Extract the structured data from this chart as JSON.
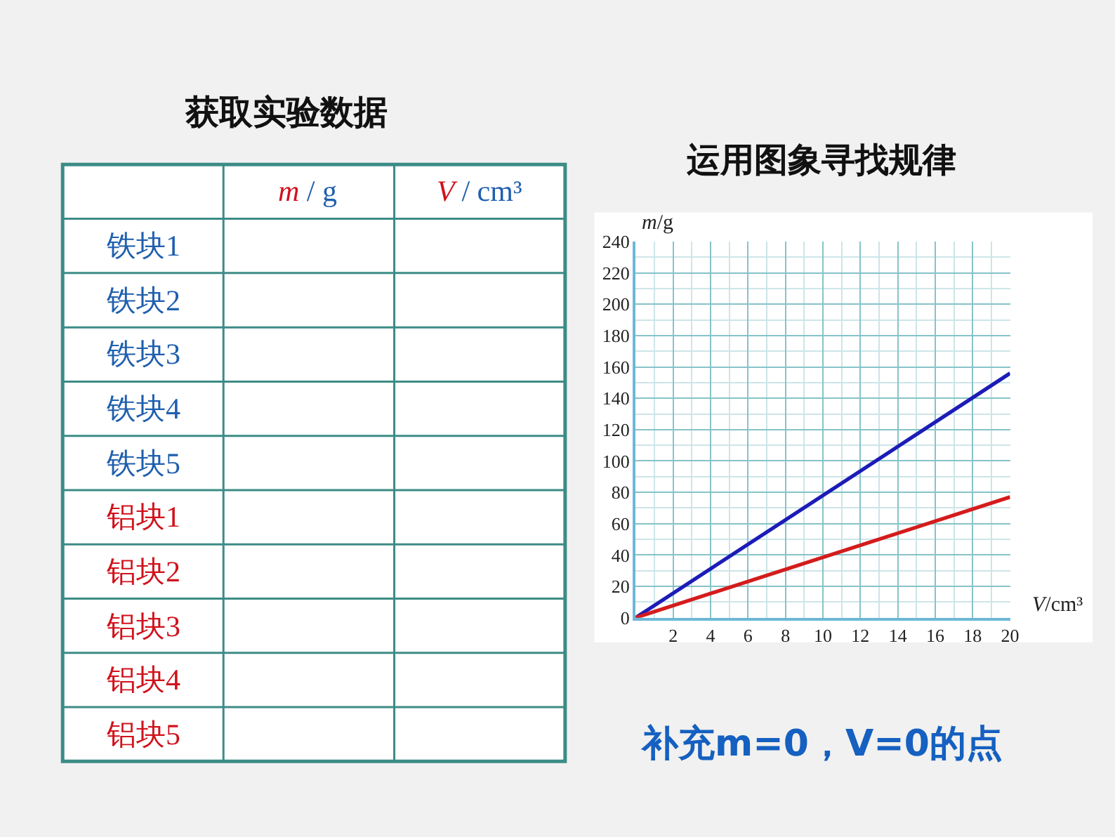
{
  "chart_data": [
    {
      "type": "other",
      "title": "获取实验数据",
      "annotations": [
        "m / g",
        "V / cm³"
      ],
      "categories": [
        "铁块1",
        "铁块2",
        "铁块3",
        "铁块4",
        "铁块5",
        "铝块1",
        "铝块2",
        "铝块3",
        "铝块4",
        "铝块5"
      ]
    },
    {
      "type": "line",
      "title": "运用图象寻找规律",
      "xlabel": "V/cm³",
      "ylabel": "m/g",
      "x": [
        0,
        20
      ],
      "series": [
        {
          "color": "#1c1cb8",
          "values": [
            0,
            156
          ]
        },
        {
          "color": "#d41c1c",
          "values": [
            0,
            77
          ]
        }
      ],
      "xlim": [
        0,
        20
      ],
      "ylim": [
        0,
        240
      ],
      "xticks": [
        {
          "value": 1,
          "label": null
        },
        2,
        {
          "value": 3,
          "label": null
        },
        4,
        {
          "value": 5,
          "label": null
        },
        6,
        {
          "value": 7,
          "label": null
        },
        8,
        {
          "value": 9,
          "label": null
        },
        10,
        {
          "value": 11,
          "label": null
        },
        12,
        {
          "value": 13,
          "label": null
        },
        14,
        {
          "value": 15,
          "label": null
        },
        16,
        {
          "value": 17,
          "label": null
        },
        18,
        {
          "value": 19,
          "label": null
        },
        20
      ],
      "yticks": [
        0,
        {
          "value": 10,
          "label": null
        },
        20,
        {
          "value": 30,
          "label": null
        },
        40,
        {
          "value": 50,
          "label": null
        },
        60,
        {
          "value": 70,
          "label": null
        },
        80,
        {
          "value": 90,
          "label": null
        },
        100,
        {
          "value": 110,
          "label": null
        },
        120,
        {
          "value": 130,
          "label": null
        },
        140,
        {
          "value": 150,
          "label": null
        },
        160,
        {
          "value": 170,
          "label": null
        },
        180,
        {
          "value": 190,
          "label": null
        },
        200,
        {
          "value": 210,
          "label": null
        },
        220,
        {
          "value": 230,
          "label": null
        },
        240
      ],
      "grid": true,
      "marker": "none",
      "annotations": [
        "补充m=0，V=0的点"
      ]
    }
  ]
}
